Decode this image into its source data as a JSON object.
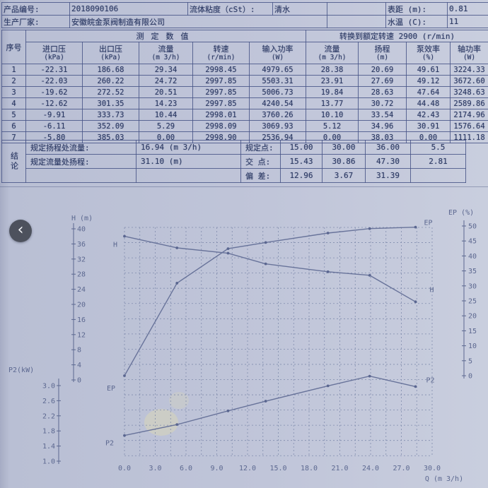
{
  "palette": {
    "page_bg": "#c0c5d9",
    "ink": "#2c3a64",
    "chart_ink": "#5c6890",
    "curve": "#68739a",
    "stain": "#dcd8b6"
  },
  "carousel": {
    "prev_icon": "‹"
  },
  "info_table": {
    "row1": {
      "label1": "产品编号:",
      "value1": "2018090106",
      "label2": "流体粘度（cSt）:",
      "value2": "清水",
      "spacer": "",
      "label3": "表距 (m):",
      "value3": "0.81"
    },
    "row2": {
      "label1": "生产厂家:",
      "value1": "安徽皖金泵阀制造有限公司",
      "spacer": "",
      "label2": "水温 (C):",
      "value2": "11"
    }
  },
  "main_table": {
    "col_index": "序号",
    "group_left": "测定数值",
    "group_right": "转换到额定转速  2900 (r/min)",
    "columns": [
      {
        "name": "进口压",
        "unit": "(kPa)"
      },
      {
        "name": "出口压",
        "unit": "(kPa)"
      },
      {
        "name": "流量",
        "unit": "(m 3/h)"
      },
      {
        "name": "转速",
        "unit": "(r/min)"
      },
      {
        "name": "输入功率",
        "unit": "(W)"
      },
      {
        "name": "流量",
        "unit": "(m 3/h)"
      },
      {
        "name": "扬程",
        "unit": "(m)"
      },
      {
        "name": "泵效率",
        "unit": "(%)"
      },
      {
        "name": "轴功率",
        "unit": "(W)"
      }
    ],
    "rows": [
      [
        "1",
        "-22.31",
        "186.68",
        "29.34",
        "2998.45",
        "4979.65",
        "28.38",
        "20.69",
        "49.61",
        "3224.33"
      ],
      [
        "2",
        "-22.03",
        "260.22",
        "24.72",
        "2997.85",
        "5503.31",
        "23.91",
        "27.69",
        "49.12",
        "3672.60"
      ],
      [
        "3",
        "-19.62",
        "272.52",
        "20.51",
        "2997.85",
        "5006.73",
        "19.84",
        "28.63",
        "47.64",
        "3248.63"
      ],
      [
        "4",
        "-12.62",
        "301.35",
        "14.23",
        "2997.85",
        "4240.54",
        "13.77",
        "30.72",
        "44.48",
        "2589.86"
      ],
      [
        "5",
        "-9.91",
        "333.73",
        "10.44",
        "2998.01",
        "3760.26",
        "10.10",
        "33.54",
        "42.43",
        "2174.96"
      ],
      [
        "6",
        "-6.11",
        "352.09",
        "5.29",
        "2998.09",
        "3069.93",
        "5.12",
        "34.96",
        "30.91",
        "1576.64"
      ],
      [
        "7",
        "-5.80",
        "385.03",
        "0.00",
        "2998.90",
        "2536.94",
        "0.00",
        "38.03",
        "0.00",
        "1111.18"
      ]
    ]
  },
  "conclusion": {
    "side_label": "结论",
    "rows": [
      {
        "label": "规定扬程处流量:",
        "value": "16.94 (m 3/h)",
        "label2": "规定点:",
        "n1": "15.00",
        "n2": "30.00",
        "n3": "36.00",
        "n4": "5.5"
      },
      {
        "label": "规定流量处扬程:",
        "value": "31.10 (m)",
        "label2": "交  点:",
        "n1": "15.43",
        "n2": "30.86",
        "n3": "47.30",
        "n4": "2.81"
      },
      {
        "label": "",
        "value": "",
        "label2": "偏  差:",
        "n1": "12.96",
        "n2": "3.67",
        "n3": "31.39",
        "n4": ""
      }
    ]
  },
  "chart_data": {
    "type": "line",
    "title": "",
    "grid": true,
    "x_axis": {
      "label": "Q (m 3/h)",
      "min": 0,
      "max": 30,
      "grid_step": 1.5,
      "ticks": [
        "0.0",
        "3.0",
        "6.0",
        "9.0",
        "12.0",
        "15.0",
        "18.0",
        "21.0",
        "24.0",
        "27.0",
        "30.0"
      ]
    },
    "y_axes": [
      {
        "id": "H",
        "label": "H (m)",
        "side": "left",
        "min": 0,
        "max": 40,
        "ticks": [
          "40",
          "36",
          "32",
          "28",
          "24",
          "20",
          "16",
          "12",
          "8",
          "4",
          "0"
        ]
      },
      {
        "id": "EP",
        "label": "EP (%)",
        "side": "right",
        "min": 0,
        "max": 50,
        "ticks": [
          "50",
          "45",
          "40",
          "35",
          "30",
          "25",
          "20",
          "15",
          "10",
          "5",
          "0"
        ]
      },
      {
        "id": "P2",
        "label": "P2(kW)",
        "side": "left-lower",
        "min": 1.0,
        "max": 3.0,
        "ticks": [
          "3.0",
          "2.6",
          "2.2",
          "1.8",
          "1.4",
          "1.0"
        ]
      }
    ],
    "series": [
      {
        "name": "H",
        "axis": "H",
        "x": [
          0,
          5.12,
          10.1,
          13.77,
          19.84,
          23.91,
          28.38
        ],
        "y": [
          38.03,
          34.96,
          33.54,
          30.72,
          28.63,
          27.69,
          20.69
        ]
      },
      {
        "name": "EP",
        "axis": "EP",
        "x": [
          0,
          5.12,
          10.1,
          13.77,
          19.84,
          23.91,
          28.38
        ],
        "y": [
          0,
          30.91,
          42.43,
          44.48,
          47.64,
          49.12,
          49.61
        ]
      },
      {
        "name": "P2",
        "axis": "P2",
        "x": [
          0,
          5.12,
          10.1,
          13.77,
          19.84,
          23.91,
          28.38
        ],
        "y": [
          1.11,
          1.58,
          2.17,
          2.59,
          3.25,
          3.67,
          3.22
        ]
      }
    ]
  }
}
